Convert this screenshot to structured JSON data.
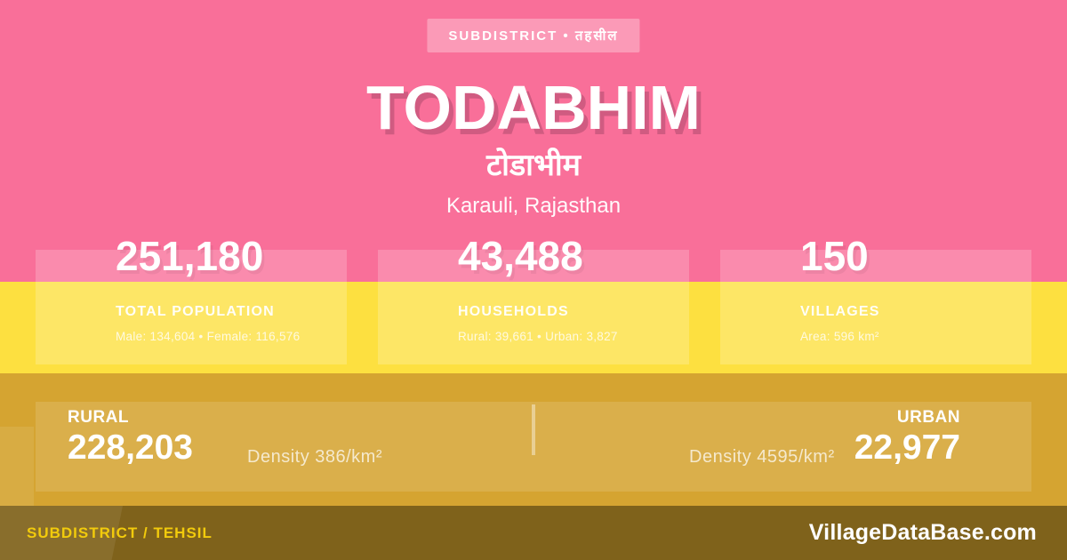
{
  "badge": {
    "label": "SUBDISTRICT • तहसील"
  },
  "header": {
    "title": "TODABHIM",
    "title_local": "टोडाभीम",
    "location": "Karauli, Rajasthan"
  },
  "stats": [
    {
      "value": "251,180",
      "label": "TOTAL POPULATION",
      "detail": "Male: 134,604 • Female: 116,576"
    },
    {
      "value": "43,488",
      "label": "HOUSEHOLDS",
      "detail": "Rural: 39,661 • Urban: 3,827"
    },
    {
      "value": "150",
      "label": "VILLAGES",
      "detail": "Area: 596 km²"
    }
  ],
  "breakdown": {
    "rural": {
      "label": "RURAL",
      "value": "228,203",
      "density": "Density 386/km²"
    },
    "urban": {
      "label": "URBAN",
      "value": "22,977",
      "density": "Density 4595/km²"
    }
  },
  "footer": {
    "type_label": "SUBDISTRICT / TEHSIL",
    "site": "VillageDataBase.com"
  },
  "colors": {
    "pink": "#F96F99",
    "yellow": "#FDE040",
    "gold": "#D5A431",
    "footer_bar": "#7F621B",
    "footer_accent": "#F2CB0C",
    "title_shadow": "#D05B81"
  }
}
